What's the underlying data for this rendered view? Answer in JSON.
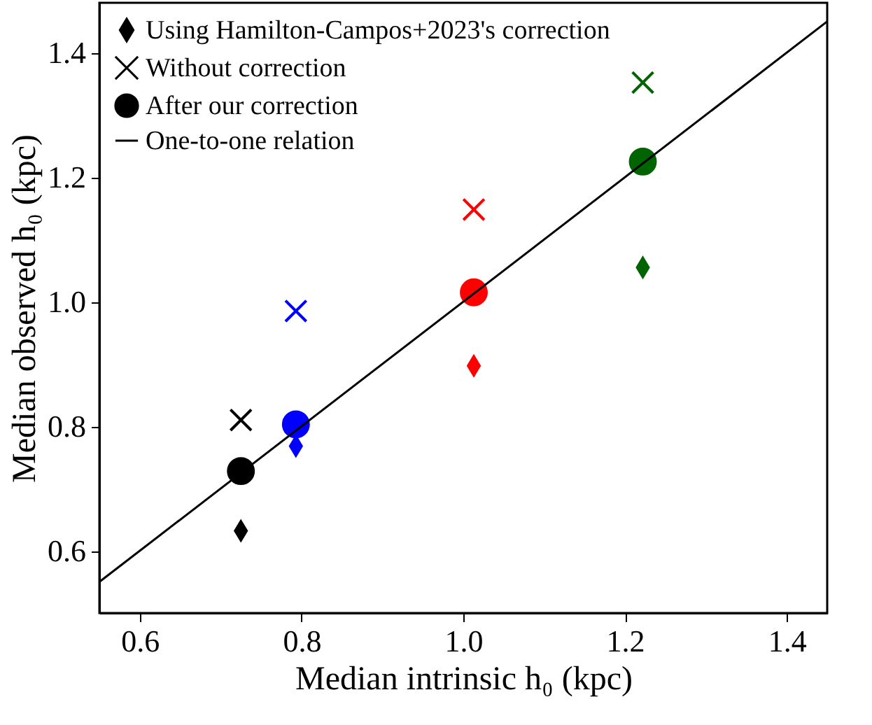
{
  "chart_data": {
    "type": "scatter",
    "xlabel": "Median intrinsic h₀ (kpc)",
    "ylabel": "Median observed h₀ (kpc)",
    "xlim": [
      0.55,
      1.45
    ],
    "ylim": [
      0.5,
      1.48
    ],
    "xticks": [
      0.6,
      0.8,
      {
        "value": 1,
        "label": "1.0"
      },
      1.2,
      1.4
    ],
    "yticks": [
      0.6,
      0.8,
      {
        "value": 1,
        "label": "1.0"
      },
      1.2,
      1.4
    ],
    "grid": false,
    "legend": "top left",
    "series": [
      {
        "name": "Using Hamilton-Campos+2023's correction",
        "marker": "diamond",
        "color": "#000000",
        "x": [
          0.725,
          0.793,
          1.013,
          1.222
        ],
        "values": [
          0.632,
          0.768,
          0.897,
          1.055
        ],
        "colors": [
          "#000000",
          "#0000ff",
          "#ff0000",
          "#006400"
        ]
      },
      {
        "name": "Without correction",
        "marker": "cross",
        "color": "#000000",
        "x": [
          0.725,
          0.793,
          1.013,
          1.222
        ],
        "values": [
          0.81,
          0.985,
          1.148,
          1.352
        ],
        "colors": [
          "#000000",
          "#0000ff",
          "#ff0000",
          "#006400"
        ]
      },
      {
        "name": "After our correction",
        "marker": "circle",
        "color": "#000000",
        "x": [
          0.725,
          0.793,
          1.013,
          1.222
        ],
        "values": [
          0.728,
          0.803,
          1.015,
          1.225
        ],
        "colors": [
          "#000000",
          "#0000ff",
          "#ff0000",
          "#006400"
        ]
      },
      {
        "name": "One-to-one relation",
        "type": "line",
        "line_style": "solid",
        "color": "#000000",
        "x": [
          0.55,
          1.45
        ],
        "values": [
          0.55,
          1.45
        ]
      }
    ]
  }
}
